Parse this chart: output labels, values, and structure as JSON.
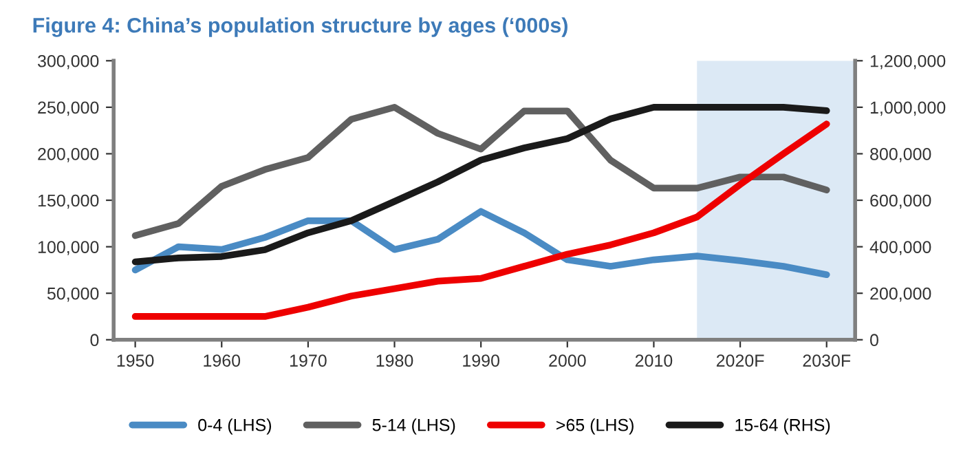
{
  "chart_data": {
    "type": "line",
    "title": "Figure 4: China’s population structure by ages (‘000s)",
    "x": [
      1950,
      1955,
      1960,
      1965,
      1970,
      1975,
      1980,
      1985,
      1990,
      1995,
      2000,
      2005,
      2010,
      2015,
      2020,
      2025,
      2030
    ],
    "series": [
      {
        "name": "0-4 (LHS)",
        "color": "#4a8bc4",
        "values": [
          75000,
          100000,
          97000,
          110000,
          128000,
          128000,
          97000,
          108000,
          138000,
          115000,
          86000,
          79000,
          86000,
          90000,
          85000,
          79000,
          70000
        ]
      },
      {
        "name": "5-14 (LHS)",
        "color": "#606060",
        "values": [
          112000,
          125000,
          165000,
          183000,
          196000,
          237000,
          250000,
          222000,
          205000,
          246000,
          246000,
          193000,
          163000,
          163000,
          175000,
          175000,
          161000
        ]
      },
      {
        "name": ">65 (LHS)",
        "color": "#ee0000",
        "values": [
          25000,
          25000,
          25000,
          25000,
          35000,
          47000,
          55000,
          63000,
          66000,
          79000,
          92000,
          102000,
          115000,
          132000,
          167000,
          200000,
          232000
        ]
      },
      {
        "name": "15-64 (RHS)",
        "color": "#1a1a1a",
        "axis": "y2",
        "values": [
          335000,
          352000,
          358000,
          387000,
          460000,
          512000,
          595000,
          679000,
          773000,
          825000,
          865000,
          950000,
          1000000,
          1000000,
          1000000,
          1000000,
          985000
        ]
      }
    ],
    "xlim": [
      1947.5,
      2033.3
    ],
    "xticks": [
      1950,
      1960,
      1970,
      1980,
      1990,
      2000,
      2010,
      {
        "value": 2020,
        "label": "2020F"
      },
      {
        "value": 2030,
        "label": "2030F"
      }
    ],
    "ylim": [
      0,
      300000
    ],
    "yticks": [
      {
        "value": 0,
        "label": "0"
      },
      {
        "value": 50000,
        "label": "50,000"
      },
      {
        "value": 100000,
        "label": "100,000"
      },
      {
        "value": 150000,
        "label": "150,000"
      },
      {
        "value": 200000,
        "label": "200,000"
      },
      {
        "value": 250000,
        "label": "250,000"
      },
      {
        "value": 300000,
        "label": "300,000"
      }
    ],
    "y2lim": [
      0,
      1200000
    ],
    "y2ticks": [
      {
        "value": 0,
        "label": "0"
      },
      {
        "value": 200000,
        "label": "200,000"
      },
      {
        "value": 400000,
        "label": "400,000"
      },
      {
        "value": 600000,
        "label": "600,000"
      },
      {
        "value": 800000,
        "label": "800,000"
      },
      {
        "value": 1000000,
        "label": "1,000,000"
      },
      {
        "value": 1200000,
        "label": "1,200,000"
      }
    ],
    "bands": [
      {
        "axis": "x",
        "from": 2015,
        "to": 2033.3,
        "color": "#dce9f5"
      }
    ],
    "legend": "bottom",
    "grid": false
  }
}
